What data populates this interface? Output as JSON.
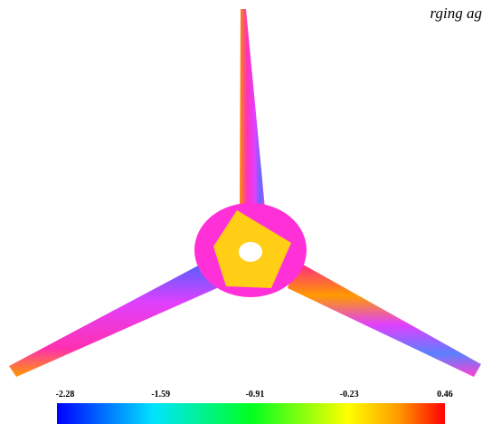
{
  "caption": "rging ag",
  "colorbar": {
    "lim": [
      -2.28,
      0.46
    ],
    "ticks": [
      -2.28,
      -1.59,
      -0.91,
      -0.23,
      0.46
    ]
  }
}
